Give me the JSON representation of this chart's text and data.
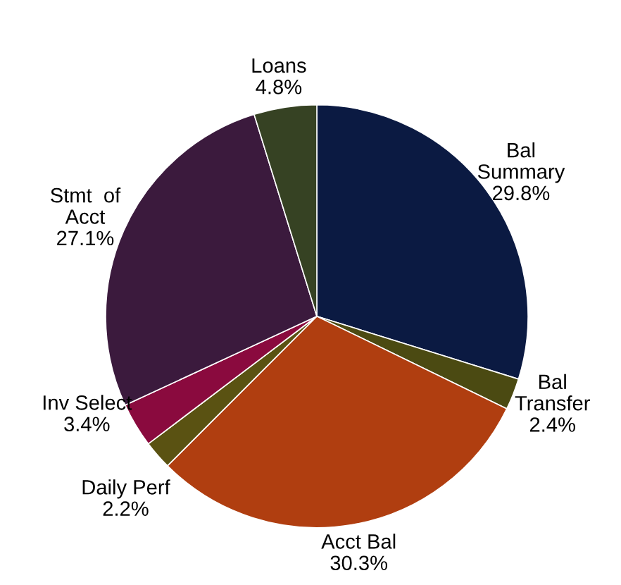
{
  "chart_data": {
    "type": "pie",
    "categories": [
      "Bal\nSummary",
      "Bal\nTransfer",
      "Acct Bal",
      "Daily Perf",
      "Inv Select",
      "Stmt  of\nAcct",
      "Loans"
    ],
    "values": [
      29.8,
      2.4,
      30.3,
      2.2,
      3.4,
      27.1,
      4.8
    ],
    "value_labels": [
      "29.8%",
      "2.4%",
      "30.3%",
      "2.2%",
      "3.4%",
      "27.1%",
      "4.8%"
    ],
    "colors": [
      "#0b1a42",
      "#4b4a12",
      "#b03e10",
      "#5a5212",
      "#8a0a3e",
      "#3b1a3d",
      "#364223"
    ],
    "legend": false
  }
}
